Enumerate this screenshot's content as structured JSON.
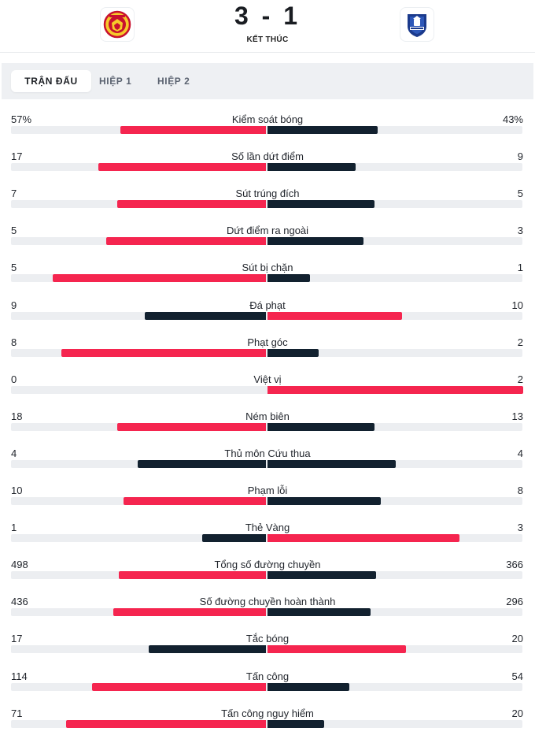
{
  "match": {
    "score": "3 - 1",
    "status": "KẾT THÚC",
    "home_crest": "manchester-united-crest",
    "away_crest": "everton-crest"
  },
  "tabs": [
    {
      "label": "TRẬN ĐẤU",
      "active": true
    },
    {
      "label": "HIỆP 1",
      "active": false
    },
    {
      "label": "HIỆP 2",
      "active": false
    }
  ],
  "colors": {
    "highlight": "#f5254f",
    "normal": "#12212f",
    "track": "#eceef1"
  },
  "stats": [
    {
      "label": "Kiểm soát bóng",
      "home": "57%",
      "away": "43%",
      "home_frac": 0.57,
      "away_frac": 0.43
    },
    {
      "label": "Số lần dứt điểm",
      "home": "17",
      "away": "9",
      "home_frac": 0.654,
      "away_frac": 0.346
    },
    {
      "label": "Sút trúng đích",
      "home": "7",
      "away": "5",
      "home_frac": 0.583,
      "away_frac": 0.417
    },
    {
      "label": "Dứt điểm ra ngoài",
      "home": "5",
      "away": "3",
      "home_frac": 0.625,
      "away_frac": 0.375
    },
    {
      "label": "Sút bị chặn",
      "home": "5",
      "away": "1",
      "home_frac": 0.833,
      "away_frac": 0.167
    },
    {
      "label": "Đá phạt",
      "home": "9",
      "away": "10",
      "home_frac": 0.474,
      "away_frac": 0.526
    },
    {
      "label": "Phạt góc",
      "home": "8",
      "away": "2",
      "home_frac": 0.8,
      "away_frac": 0.2
    },
    {
      "label": "Việt vị",
      "home": "0",
      "away": "2",
      "home_frac": 0.0,
      "away_frac": 1.0
    },
    {
      "label": "Ném biên",
      "home": "18",
      "away": "13",
      "home_frac": 0.581,
      "away_frac": 0.419
    },
    {
      "label": "Thủ môn Cứu thua",
      "home": "4",
      "away": "4",
      "home_frac": 0.5,
      "away_frac": 0.5
    },
    {
      "label": "Phạm lỗi",
      "home": "10",
      "away": "8",
      "home_frac": 0.556,
      "away_frac": 0.444
    },
    {
      "label": "Thẻ Vàng",
      "home": "1",
      "away": "3",
      "home_frac": 0.25,
      "away_frac": 0.75
    },
    {
      "label": "Tổng số đường chuyền",
      "home": "498",
      "away": "366",
      "home_frac": 0.576,
      "away_frac": 0.424
    },
    {
      "label": "Số đường chuyền hoàn thành",
      "home": "436",
      "away": "296",
      "home_frac": 0.596,
      "away_frac": 0.404
    },
    {
      "label": "Tắc bóng",
      "home": "17",
      "away": "20",
      "home_frac": 0.459,
      "away_frac": 0.541
    },
    {
      "label": "Tấn công",
      "home": "114",
      "away": "54",
      "home_frac": 0.679,
      "away_frac": 0.321
    },
    {
      "label": "Tấn công nguy hiểm",
      "home": "71",
      "away": "20",
      "home_frac": 0.78,
      "away_frac": 0.22
    }
  ]
}
